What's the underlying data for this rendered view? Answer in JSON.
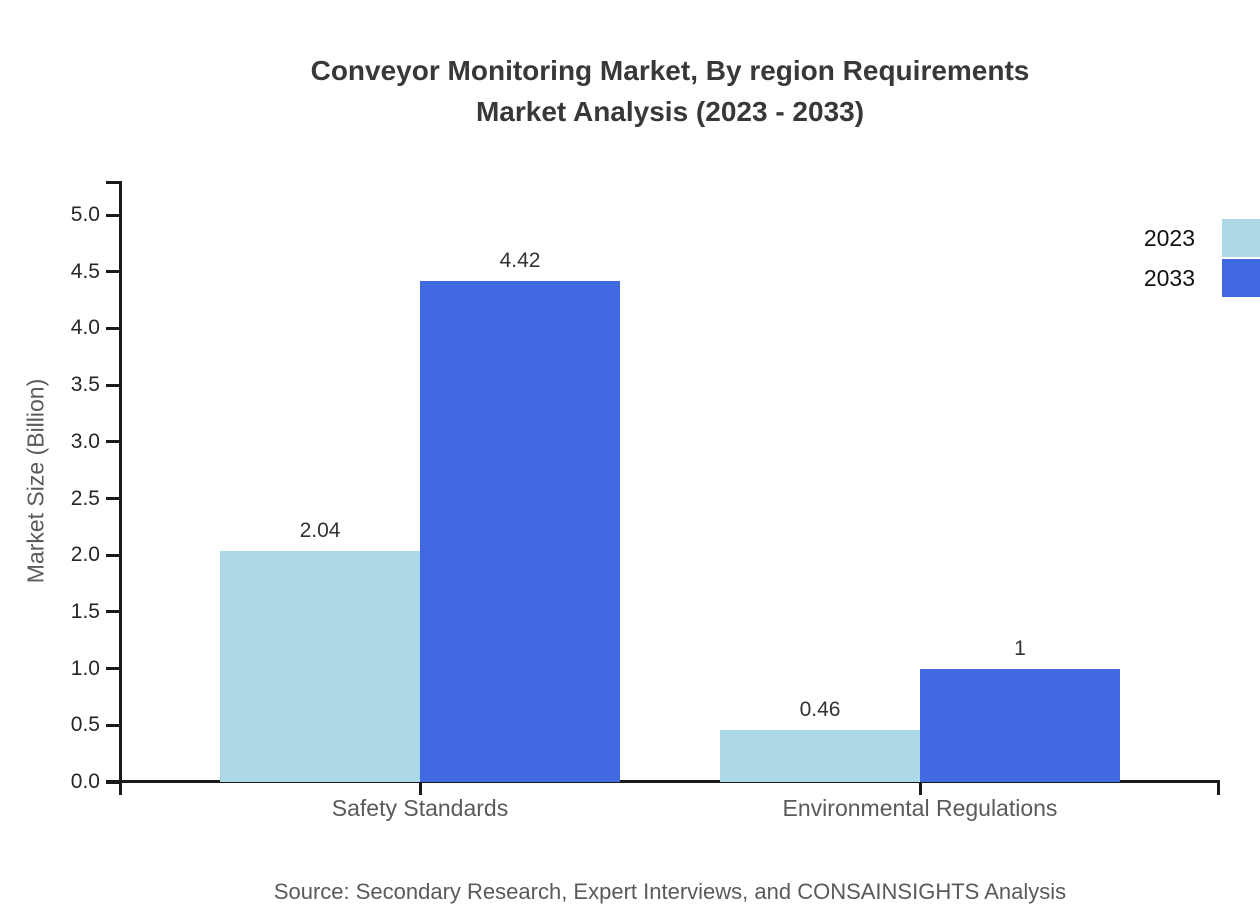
{
  "title": {
    "line1": "Conveyor Monitoring Market, By region Requirements",
    "line2": "Market Analysis (2023 - 2033)"
  },
  "source": "Source: Secondary Research, Expert Interviews, and CONSAINSIGHTS Analysis",
  "chart_data": {
    "type": "bar",
    "title": "Conveyor Monitoring Market, By region Requirements Market Analysis (2023 - 2033)",
    "categories": [
      "Safety Standards",
      "Environmental Regulations"
    ],
    "series": [
      {
        "name": "2023",
        "color": "#ADD8E6",
        "values": [
          2.04,
          0.46
        ]
      },
      {
        "name": "2033",
        "color": "#4169E1",
        "values": [
          4.42,
          1
        ]
      }
    ],
    "xlabel": "",
    "ylabel": "Market Size (Billion)",
    "ylim": [
      0.0,
      5.0
    ],
    "yticks": [
      0.0,
      0.5,
      1.0,
      1.5,
      2.0,
      2.5,
      3.0,
      3.5,
      4.0,
      4.5,
      5.0
    ],
    "grid": false,
    "legend_position": "top-right",
    "value_labels": [
      "2.04",
      "4.42",
      "0.46",
      "1"
    ],
    "colors": {
      "axis": "#1a1a1a",
      "title_text": "#383838",
      "tick_text": "#262626",
      "label_text": "#5a5a5a",
      "value_text": "#333333",
      "legend_text": "#111111"
    }
  }
}
